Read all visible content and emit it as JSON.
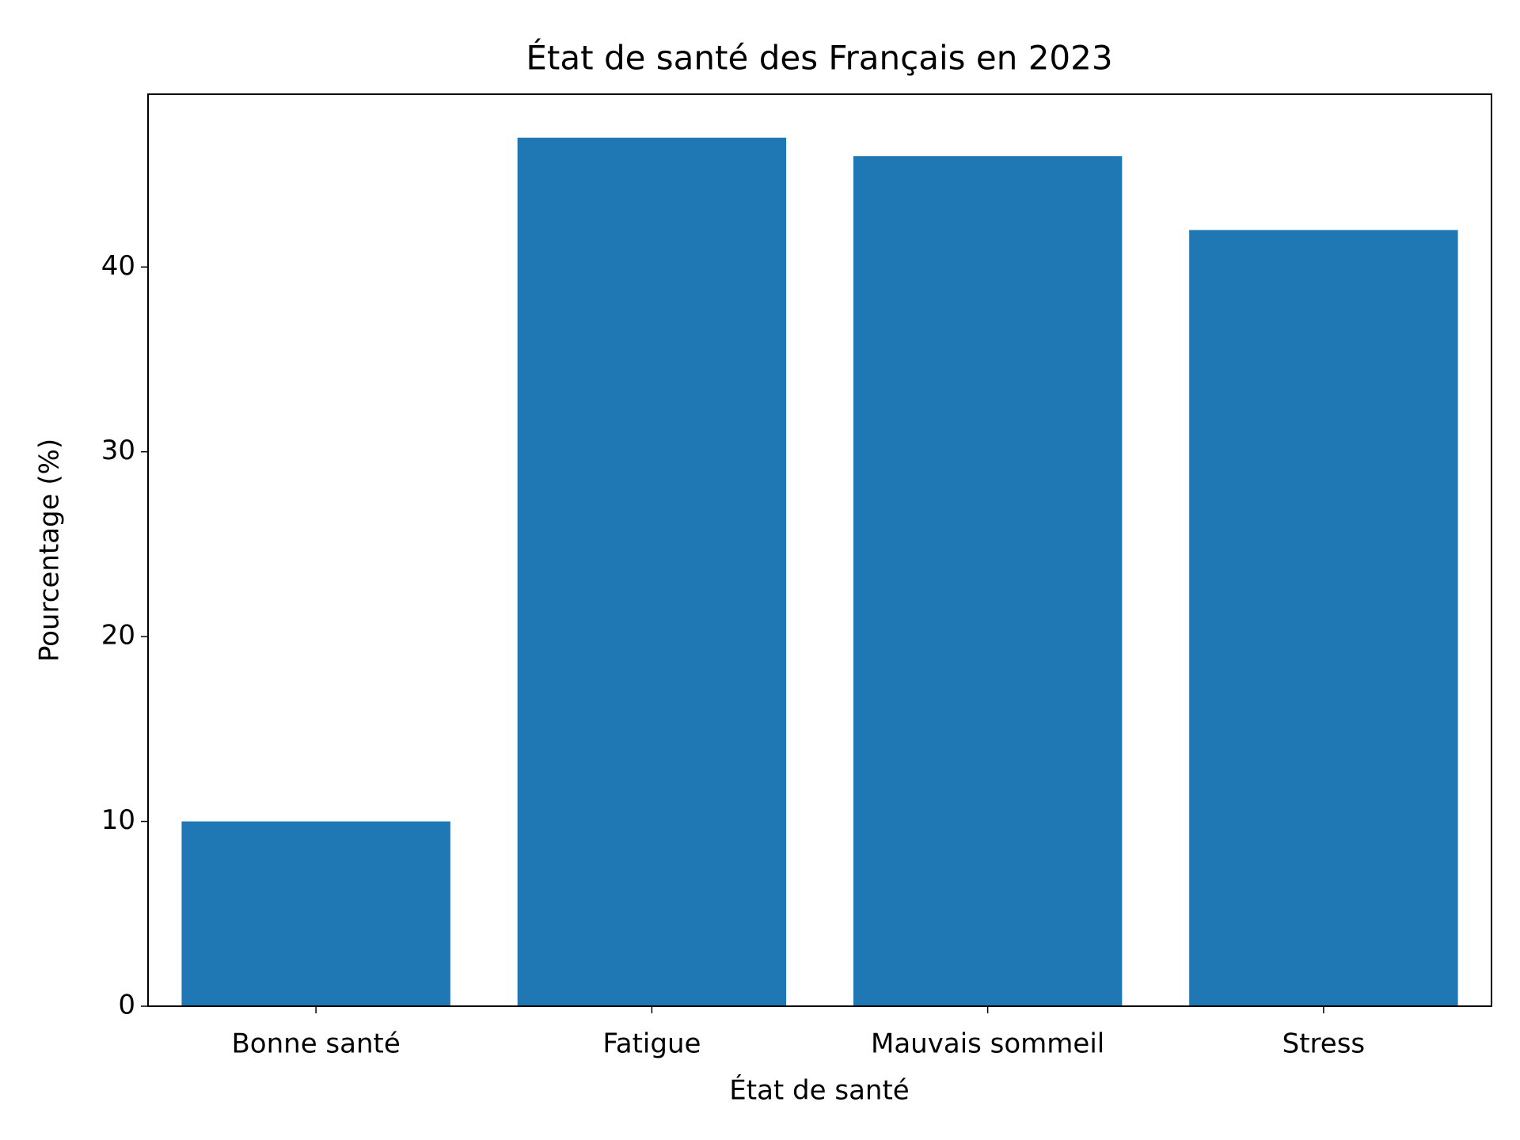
{
  "chart_data": {
    "type": "bar",
    "title": "État de santé des Français en 2023",
    "x_label": "État de santé",
    "y_label": "Pourcentage (%)",
    "categories": [
      "Bonne santé",
      "Fatigue",
      "Mauvais sommeil",
      "Stress"
    ],
    "values": [
      10,
      47,
      46,
      42
    ],
    "color": "#1f77b4",
    "ylim": [
      0,
      49.35
    ],
    "yticks": [
      0,
      10,
      20,
      30,
      40
    ],
    "grid": false
  }
}
